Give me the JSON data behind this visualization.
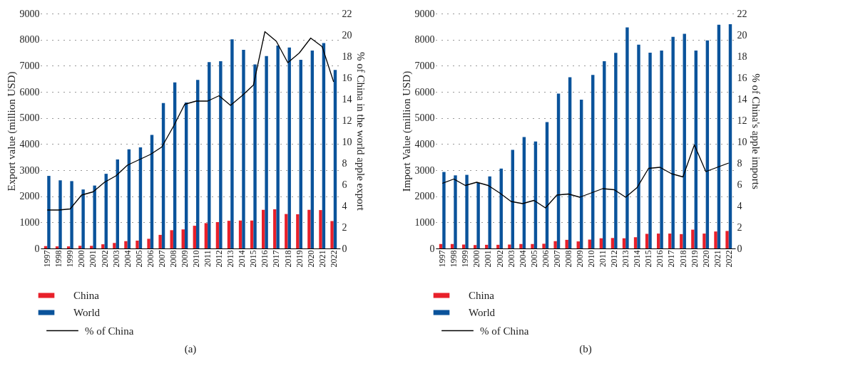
{
  "chart_data": [
    {
      "type": "bar",
      "ylabel": "Export value (million USD)",
      "y2label": "% of China in the world apple export",
      "categories": [
        "1997",
        "1998",
        "1999",
        "2000",
        "2001",
        "2002",
        "2003",
        "2004",
        "2005",
        "2006",
        "2007",
        "2008",
        "2009",
        "2010",
        "2011",
        "2012",
        "2013",
        "2014",
        "2015",
        "2016",
        "2017",
        "2018",
        "2019",
        "2020",
        "2021",
        "2022"
      ],
      "series": [
        {
          "name": "China",
          "color": "#e8202a",
          "values": [
            90,
            80,
            80,
            100,
            100,
            160,
            210,
            280,
            300,
            370,
            520,
            700,
            730,
            870,
            970,
            1010,
            1060,
            1070,
            1070,
            1480,
            1500,
            1320,
            1310,
            1480,
            1470,
            1050
          ]
        },
        {
          "name": "World",
          "color": "#0a539b",
          "values": [
            2780,
            2610,
            2580,
            2260,
            2410,
            2860,
            3410,
            3800,
            3870,
            4350,
            5570,
            6360,
            5590,
            6460,
            7140,
            7170,
            8010,
            7610,
            7050,
            7370,
            7770,
            7700,
            7230,
            7580,
            7870,
            6840
          ]
        },
        {
          "name": "% of China",
          "type": "line",
          "axis": "y2",
          "color": "#000000",
          "values": [
            3.6,
            3.6,
            3.7,
            5.0,
            5.3,
            6.2,
            6.8,
            7.8,
            8.3,
            8.8,
            9.5,
            11.4,
            13.5,
            13.8,
            13.8,
            14.3,
            13.4,
            14.3,
            15.3,
            20.3,
            19.4,
            17.4,
            18.3,
            19.7,
            18.9,
            15.6
          ]
        }
      ],
      "ylim": [
        0,
        9000
      ],
      "yticks": [
        0,
        1000,
        2000,
        3000,
        4000,
        5000,
        6000,
        7000,
        8000,
        9000
      ],
      "y2lim": [
        0,
        22
      ],
      "y2ticks": [
        0,
        2,
        4,
        6,
        8,
        10,
        12,
        14,
        16,
        18,
        20,
        22
      ],
      "grid": "y",
      "legend": "bottom left",
      "annotations": [
        "(a)"
      ]
    },
    {
      "type": "bar",
      "ylabel": "Import Value (million USD)",
      "y2label": "% of China's apple imports",
      "categories": [
        "1997",
        "1998",
        "1999",
        "2000",
        "2001",
        "2002",
        "2003",
        "2004",
        "2005",
        "2006",
        "2007",
        "2008",
        "2009",
        "2010",
        "2011",
        "2012",
        "2013",
        "2014",
        "2015",
        "2016",
        "2017",
        "2018",
        "2019",
        "2020",
        "2021",
        "2022"
      ],
      "series": [
        {
          "name": "China",
          "color": "#e8202a",
          "values": [
            170,
            170,
            150,
            130,
            140,
            140,
            150,
            170,
            170,
            180,
            280,
            330,
            270,
            340,
            390,
            400,
            390,
            430,
            560,
            570,
            570,
            550,
            720,
            570,
            650,
            670
          ]
        },
        {
          "name": "World",
          "color": "#0a539b",
          "values": [
            2930,
            2800,
            2820,
            2510,
            2760,
            3060,
            3780,
            4270,
            4100,
            4840,
            5930,
            6560,
            5700,
            6650,
            7170,
            7490,
            8470,
            7810,
            7500,
            7580,
            8110,
            8220,
            7580,
            7970,
            8570,
            8590
          ]
        },
        {
          "name": "% of China",
          "type": "line",
          "axis": "y2",
          "color": "#000000",
          "values": [
            6.1,
            6.5,
            5.9,
            6.2,
            5.9,
            5.2,
            4.4,
            4.2,
            4.5,
            3.8,
            5.0,
            5.1,
            4.8,
            5.2,
            5.6,
            5.5,
            4.8,
            5.7,
            7.5,
            7.6,
            7.0,
            6.7,
            9.7,
            7.2,
            7.6,
            8.0
          ]
        }
      ],
      "ylim": [
        0,
        9000
      ],
      "yticks": [
        0,
        1000,
        2000,
        3000,
        4000,
        5000,
        6000,
        7000,
        8000,
        9000
      ],
      "y2lim": [
        0,
        22
      ],
      "y2ticks": [
        0,
        2,
        4,
        6,
        8,
        10,
        12,
        14,
        16,
        18,
        20,
        22
      ],
      "grid": "y",
      "legend": "bottom left",
      "annotations": [
        "(b)"
      ]
    }
  ]
}
